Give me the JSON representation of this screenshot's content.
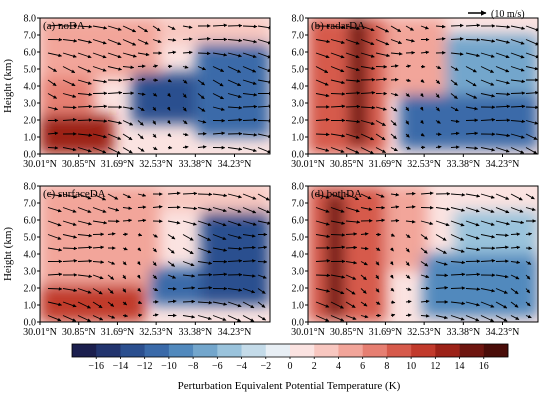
{
  "figure": {
    "ylabel": "Height (km)",
    "colorbar_label": "Perturbation Equivalent Potential Temperature (K)",
    "reference_vector": "(10 m/s)"
  },
  "chart_data": [
    {
      "type": "heatmap",
      "panel_label": "(a) noDA",
      "x_ticks": [
        "30.01°N",
        "30.85°N",
        "31.69°N",
        "32.53°N",
        "33.38°N",
        "34.23°N"
      ],
      "y_ticks": [
        "0.0",
        "1.0",
        "2.0",
        "3.0",
        "4.0",
        "5.0",
        "6.0",
        "7.0",
        "8.0"
      ],
      "ylabel": "Height (km)",
      "ylim": [
        0,
        8
      ],
      "x_range_deg": [
        30.01,
        35.0
      ],
      "field_regions": [
        {
          "x": [
            30.01,
            31.6
          ],
          "z": [
            0,
            2.3
          ],
          "value": 12
        },
        {
          "x": [
            30.01,
            31.2
          ],
          "z": [
            2.3,
            4.5
          ],
          "value": 6
        },
        {
          "x": [
            30.01,
            32.6
          ],
          "z": [
            4.5,
            8
          ],
          "value": 5
        },
        {
          "x": [
            32.0,
            33.4
          ],
          "z": [
            1.8,
            4.8
          ],
          "value": -13
        },
        {
          "x": [
            33.4,
            35.0
          ],
          "z": [
            1.0,
            6.5
          ],
          "value": -11
        },
        {
          "x": [
            32.6,
            35.0
          ],
          "z": [
            6.5,
            8
          ],
          "value": 2
        }
      ]
    },
    {
      "type": "heatmap",
      "panel_label": "(b) radarDA",
      "x_ticks": [
        "30.01°N",
        "30.85°N",
        "31.69°N",
        "32.53°N",
        "33.38°N",
        "34.23°N"
      ],
      "y_ticks": [
        "0.0",
        "1.0",
        "2.0",
        "3.0",
        "4.0",
        "5.0",
        "6.0",
        "7.0",
        "8.0"
      ],
      "ylim": [
        0,
        8
      ],
      "x_range_deg": [
        30.01,
        35.0
      ],
      "field_regions": [
        {
          "x": [
            30.01,
            31.7
          ],
          "z": [
            0,
            8
          ],
          "value": 9
        },
        {
          "x": [
            30.9,
            31.3
          ],
          "z": [
            0.5,
            8
          ],
          "value": 14
        },
        {
          "x": [
            31.7,
            33.0
          ],
          "z": [
            3.5,
            8
          ],
          "value": 5
        },
        {
          "x": [
            32.0,
            35.0
          ],
          "z": [
            0.3,
            3.5
          ],
          "value": -12
        },
        {
          "x": [
            33.0,
            35.0
          ],
          "z": [
            3.5,
            7.0
          ],
          "value": -8
        }
      ]
    },
    {
      "type": "heatmap",
      "panel_label": "(c) surfaceDA",
      "x_ticks": [
        "30.01°N",
        "30.85°N",
        "31.69°N",
        "32.53°N",
        "33.38°N",
        "34.23°N"
      ],
      "y_ticks": [
        "0.0",
        "1.0",
        "2.0",
        "3.0",
        "4.0",
        "5.0",
        "6.0",
        "7.0",
        "8.0"
      ],
      "ylabel": "Height (km)",
      "ylim": [
        0,
        8
      ],
      "x_range_deg": [
        30.01,
        35.0
      ],
      "field_regions": [
        {
          "x": [
            30.01,
            32.3
          ],
          "z": [
            0,
            2.2
          ],
          "value": 10
        },
        {
          "x": [
            30.01,
            32.6
          ],
          "z": [
            2.2,
            8
          ],
          "value": 4
        },
        {
          "x": [
            32.4,
            33.5
          ],
          "z": [
            1.0,
            3.2
          ],
          "value": -12
        },
        {
          "x": [
            33.5,
            35.0
          ],
          "z": [
            1.0,
            6.5
          ],
          "value": -13
        },
        {
          "x": [
            32.6,
            35.0
          ],
          "z": [
            6.5,
            8
          ],
          "value": 2
        }
      ]
    },
    {
      "type": "heatmap",
      "panel_label": "(d) bothDA",
      "x_ticks": [
        "30.01°N",
        "30.85°N",
        "31.69°N",
        "32.53°N",
        "33.38°N",
        "34.23°N"
      ],
      "y_ticks": [
        "0.0",
        "1.0",
        "2.0",
        "3.0",
        "4.0",
        "5.0",
        "6.0",
        "7.0",
        "8.0"
      ],
      "ylim": [
        0,
        8
      ],
      "x_range_deg": [
        30.01,
        35.0
      ],
      "field_regions": [
        {
          "x": [
            30.01,
            31.7
          ],
          "z": [
            0,
            8
          ],
          "value": 8
        },
        {
          "x": [
            30.4,
            30.8
          ],
          "z": [
            0.3,
            7.5
          ],
          "value": 14
        },
        {
          "x": [
            31.7,
            32.6
          ],
          "z": [
            3.0,
            8
          ],
          "value": 5
        },
        {
          "x": [
            32.5,
            35.0
          ],
          "z": [
            0.3,
            4.0
          ],
          "value": -10
        },
        {
          "x": [
            33.2,
            35.0
          ],
          "z": [
            4.0,
            6.5
          ],
          "value": -6
        }
      ]
    }
  ],
  "colorbar": {
    "tick_labels": [
      "−16",
      "−14",
      "−12",
      "−10",
      "−8",
      "−6",
      "−4",
      "−2",
      "0",
      "2",
      "4",
      "6",
      "8",
      "10",
      "12",
      "14",
      "16"
    ],
    "levels": [
      -18,
      -16,
      -14,
      -12,
      -10,
      -8,
      -6,
      -4,
      -2,
      0,
      2,
      4,
      6,
      8,
      10,
      12,
      14,
      16,
      18
    ],
    "colors": [
      "#1b1f4e",
      "#22346e",
      "#2b4f8f",
      "#3a6aa9",
      "#5189bd",
      "#73a6cc",
      "#9ac3dc",
      "#c4dbe9",
      "#e8eff5",
      "#fbe3e1",
      "#f8c7c0",
      "#f2a59a",
      "#e67f72",
      "#d65a4b",
      "#c13a2c",
      "#9c2218",
      "#6e1610",
      "#4a0d09"
    ]
  }
}
